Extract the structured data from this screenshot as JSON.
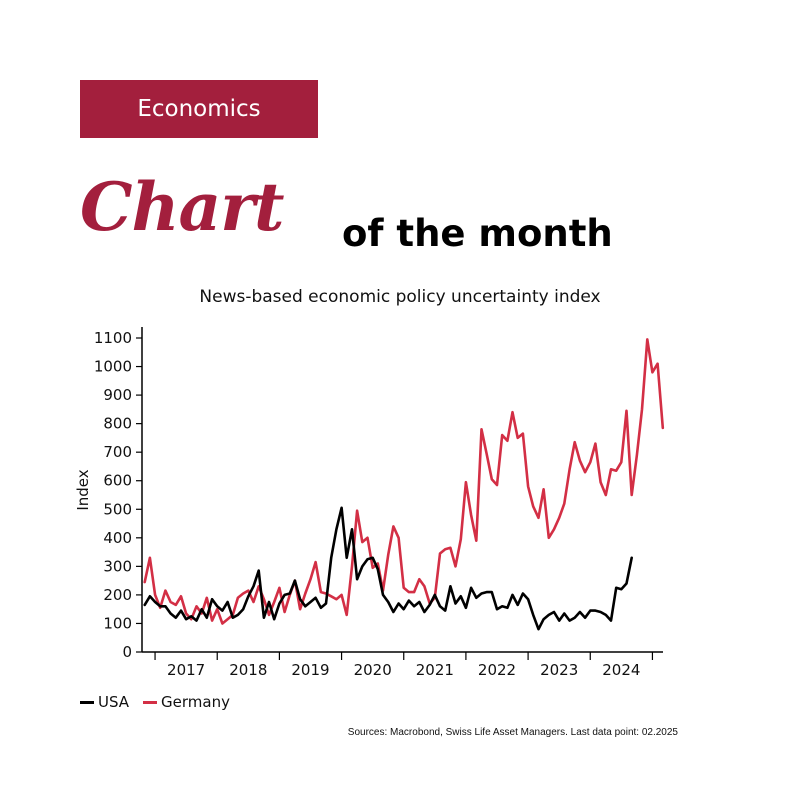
{
  "header": {
    "category": "Economics",
    "title_italic": "Chart",
    "title_rest": "of the month",
    "accent_color": "#a31f3d"
  },
  "footer": {
    "source": "Sources: Macrobond, Swiss Life Asset Managers. Last data point: 02.2025"
  },
  "chart_data": {
    "type": "line",
    "title": "News-based economic policy uncertainty index",
    "xlabel": "",
    "ylabel": "Index",
    "ylim": [
      0,
      1150
    ],
    "yticks": [
      0,
      100,
      200,
      300,
      400,
      500,
      600,
      700,
      800,
      900,
      1000,
      1100
    ],
    "xlim": [
      2016.79,
      2025.17
    ],
    "year_labels": [
      "2017",
      "2018",
      "2019",
      "2020",
      "2021",
      "2022",
      "2023",
      "2024"
    ],
    "legend": [
      "USA",
      "Germany"
    ],
    "series": [
      {
        "name": "USA",
        "color": "#000000",
        "points": [
          [
            2016.833,
            165
          ],
          [
            2016.917,
            195
          ],
          [
            2017.0,
            175
          ],
          [
            2017.083,
            160
          ],
          [
            2017.167,
            160
          ],
          [
            2017.25,
            135
          ],
          [
            2017.333,
            120
          ],
          [
            2017.417,
            145
          ],
          [
            2017.5,
            115
          ],
          [
            2017.583,
            125
          ],
          [
            2017.667,
            110
          ],
          [
            2017.75,
            150
          ],
          [
            2017.833,
            120
          ],
          [
            2017.917,
            185
          ],
          [
            2018.0,
            160
          ],
          [
            2018.083,
            145
          ],
          [
            2018.167,
            175
          ],
          [
            2018.25,
            120
          ],
          [
            2018.333,
            130
          ],
          [
            2018.417,
            150
          ],
          [
            2018.5,
            195
          ],
          [
            2018.583,
            230
          ],
          [
            2018.667,
            285
          ],
          [
            2018.75,
            120
          ],
          [
            2018.833,
            175
          ],
          [
            2018.917,
            115
          ],
          [
            2019.0,
            170
          ],
          [
            2019.083,
            200
          ],
          [
            2019.167,
            205
          ],
          [
            2019.25,
            250
          ],
          [
            2019.333,
            185
          ],
          [
            2019.417,
            160
          ],
          [
            2019.5,
            175
          ],
          [
            2019.583,
            190
          ],
          [
            2019.667,
            155
          ],
          [
            2019.75,
            170
          ],
          [
            2019.833,
            330
          ],
          [
            2019.917,
            430
          ],
          [
            2020.0,
            505
          ],
          [
            2020.083,
            330
          ],
          [
            2020.167,
            430
          ],
          [
            2020.25,
            255
          ],
          [
            2020.333,
            300
          ],
          [
            2020.417,
            325
          ],
          [
            2020.5,
            330
          ],
          [
            2020.583,
            290
          ],
          [
            2020.667,
            200
          ],
          [
            2020.75,
            175
          ],
          [
            2020.833,
            140
          ],
          [
            2020.917,
            170
          ],
          [
            2021.0,
            150
          ],
          [
            2021.083,
            180
          ],
          [
            2021.167,
            160
          ],
          [
            2021.25,
            175
          ],
          [
            2021.333,
            140
          ],
          [
            2021.417,
            165
          ],
          [
            2021.5,
            200
          ],
          [
            2021.583,
            160
          ],
          [
            2021.667,
            145
          ],
          [
            2021.75,
            230
          ],
          [
            2021.833,
            170
          ],
          [
            2021.917,
            195
          ],
          [
            2022.0,
            155
          ],
          [
            2022.083,
            225
          ],
          [
            2022.167,
            190
          ],
          [
            2022.25,
            205
          ],
          [
            2022.333,
            210
          ],
          [
            2022.417,
            210
          ],
          [
            2022.5,
            150
          ],
          [
            2022.583,
            160
          ],
          [
            2022.667,
            155
          ],
          [
            2022.75,
            200
          ],
          [
            2022.833,
            165
          ],
          [
            2022.917,
            205
          ],
          [
            2023.0,
            185
          ],
          [
            2023.083,
            130
          ],
          [
            2023.167,
            80
          ],
          [
            2023.25,
            115
          ],
          [
            2023.333,
            130
          ],
          [
            2023.417,
            140
          ],
          [
            2023.5,
            110
          ],
          [
            2023.583,
            135
          ],
          [
            2023.667,
            110
          ],
          [
            2023.75,
            120
          ],
          [
            2023.833,
            140
          ],
          [
            2023.917,
            120
          ],
          [
            2024.0,
            145
          ],
          [
            2024.083,
            145
          ],
          [
            2024.167,
            140
          ],
          [
            2024.25,
            130
          ],
          [
            2024.333,
            110
          ],
          [
            2024.417,
            225
          ],
          [
            2024.5,
            220
          ],
          [
            2024.583,
            240
          ],
          [
            2024.667,
            330
          ]
        ]
      },
      {
        "name": "Germany",
        "color": "#d32f45",
        "points": [
          [
            2016.833,
            245
          ],
          [
            2016.917,
            330
          ],
          [
            2017.0,
            200
          ],
          [
            2017.083,
            155
          ],
          [
            2017.167,
            215
          ],
          [
            2017.25,
            175
          ],
          [
            2017.333,
            165
          ],
          [
            2017.417,
            195
          ],
          [
            2017.5,
            135
          ],
          [
            2017.583,
            115
          ],
          [
            2017.667,
            160
          ],
          [
            2017.75,
            135
          ],
          [
            2017.833,
            190
          ],
          [
            2017.917,
            110
          ],
          [
            2018.0,
            150
          ],
          [
            2018.083,
            100
          ],
          [
            2018.167,
            115
          ],
          [
            2018.25,
            130
          ],
          [
            2018.333,
            190
          ],
          [
            2018.417,
            205
          ],
          [
            2018.5,
            215
          ],
          [
            2018.583,
            175
          ],
          [
            2018.667,
            230
          ],
          [
            2018.75,
            185
          ],
          [
            2018.833,
            130
          ],
          [
            2018.917,
            175
          ],
          [
            2019.0,
            225
          ],
          [
            2019.083,
            140
          ],
          [
            2019.167,
            200
          ],
          [
            2019.25,
            250
          ],
          [
            2019.333,
            150
          ],
          [
            2019.417,
            205
          ],
          [
            2019.5,
            255
          ],
          [
            2019.583,
            315
          ],
          [
            2019.667,
            210
          ],
          [
            2019.75,
            205
          ],
          [
            2019.833,
            195
          ],
          [
            2019.917,
            185
          ],
          [
            2020.0,
            200
          ],
          [
            2020.083,
            130
          ],
          [
            2020.167,
            300
          ],
          [
            2020.25,
            495
          ],
          [
            2020.333,
            385
          ],
          [
            2020.417,
            400
          ],
          [
            2020.5,
            295
          ],
          [
            2020.583,
            310
          ],
          [
            2020.667,
            215
          ],
          [
            2020.75,
            340
          ],
          [
            2020.833,
            440
          ],
          [
            2020.917,
            400
          ],
          [
            2021.0,
            225
          ],
          [
            2021.083,
            210
          ],
          [
            2021.167,
            210
          ],
          [
            2021.25,
            255
          ],
          [
            2021.333,
            230
          ],
          [
            2021.417,
            170
          ],
          [
            2021.5,
            190
          ],
          [
            2021.583,
            345
          ],
          [
            2021.667,
            360
          ],
          [
            2021.75,
            365
          ],
          [
            2021.833,
            300
          ],
          [
            2021.917,
            395
          ],
          [
            2022.0,
            595
          ],
          [
            2022.083,
            480
          ],
          [
            2022.167,
            390
          ],
          [
            2022.25,
            780
          ],
          [
            2022.333,
            695
          ],
          [
            2022.417,
            605
          ],
          [
            2022.5,
            585
          ],
          [
            2022.583,
            760
          ],
          [
            2022.667,
            740
          ],
          [
            2022.75,
            840
          ],
          [
            2022.833,
            750
          ],
          [
            2022.917,
            765
          ],
          [
            2023.0,
            580
          ],
          [
            2023.083,
            510
          ],
          [
            2023.167,
            470
          ],
          [
            2023.25,
            570
          ],
          [
            2023.333,
            400
          ],
          [
            2023.417,
            430
          ],
          [
            2023.5,
            470
          ],
          [
            2023.583,
            520
          ],
          [
            2023.667,
            640
          ],
          [
            2023.75,
            735
          ],
          [
            2023.833,
            670
          ],
          [
            2023.917,
            630
          ],
          [
            2024.0,
            665
          ],
          [
            2024.083,
            730
          ],
          [
            2024.167,
            595
          ],
          [
            2024.25,
            550
          ],
          [
            2024.333,
            640
          ],
          [
            2024.417,
            635
          ],
          [
            2024.5,
            665
          ],
          [
            2024.583,
            845
          ],
          [
            2024.667,
            550
          ],
          [
            2024.75,
            690
          ],
          [
            2024.833,
            850
          ],
          [
            2024.917,
            1095
          ],
          [
            2025.0,
            980
          ],
          [
            2025.083,
            1010
          ],
          [
            2025.167,
            785
          ]
        ]
      }
    ]
  }
}
